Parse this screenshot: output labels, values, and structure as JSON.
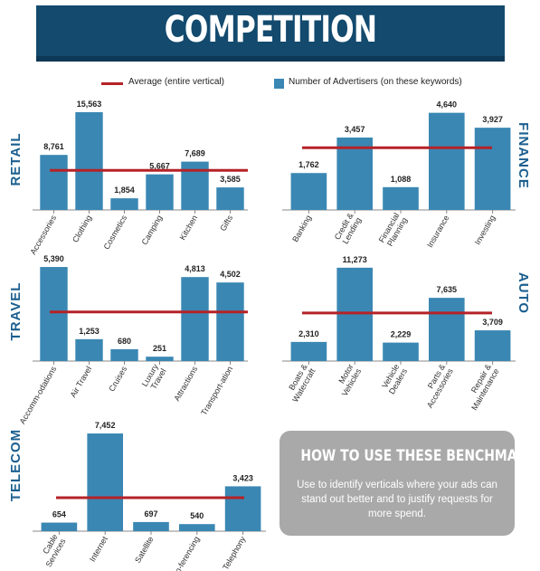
{
  "title": "COMPETITION",
  "legend": {
    "average_label": "Average (entire vertical)",
    "advertisers_label": "Number of Advertisers (on these keywords)"
  },
  "colors": {
    "bar": "#3a87b3",
    "average": "#b52227",
    "banner": "#134a6e",
    "sector_label": "#1b5f8f",
    "axis": "#888888"
  },
  "howto": {
    "title": "HOW TO USE THESE BENCHMARKS",
    "text": "Use to identify verticals where your ads can stand out better and to justify requests for more spend."
  },
  "chart_data": [
    {
      "type": "bar",
      "title": "RETAIL",
      "categories": [
        "Accessories",
        "Clothing",
        "Cosmetics",
        "Camping",
        "Kitchen",
        "Gifts"
      ],
      "values": [
        8761,
        15563,
        1854,
        5667,
        7689,
        3585
      ],
      "value_labels": [
        "8,761",
        "15,563",
        "1,854",
        "5,667",
        "7,689",
        "3,585"
      ],
      "average": 6300,
      "ylim": [
        0,
        17000
      ]
    },
    {
      "type": "bar",
      "title": "FINANCE",
      "categories": [
        "Banking",
        "Credit & Lending",
        "Financial Planning",
        "Insurance",
        "Investing"
      ],
      "values": [
        1762,
        3457,
        1088,
        4640,
        3927
      ],
      "value_labels": [
        "1,762",
        "3,457",
        "1,088",
        "4,640",
        "3,927"
      ],
      "average": 2970,
      "ylim": [
        0,
        5100
      ]
    },
    {
      "type": "bar",
      "title": "TRAVEL",
      "categories": [
        "Accomm-odations",
        "Air Travel",
        "Cruises",
        "Luxury Travel",
        "Attractions",
        "Transport-ation"
      ],
      "values": [
        5390,
        1253,
        680,
        251,
        4813,
        4502
      ],
      "value_labels": [
        "5,390",
        "1,253",
        "680",
        "251",
        "4,813",
        "4,502"
      ],
      "average": 2810,
      "ylim": [
        0,
        5600
      ]
    },
    {
      "type": "bar",
      "title": "AUTO",
      "categories": [
        "Boats & Watercraft",
        "Motor Vehicles",
        "Vehicle Dealers",
        "Parts & Accessories",
        "Repair & Maintenance"
      ],
      "values": [
        2310,
        11273,
        2229,
        7635,
        3709
      ],
      "value_labels": [
        "2,310",
        "11,273",
        "2,229",
        "7,635",
        "3,709"
      ],
      "average": 5800,
      "ylim": [
        0,
        11800
      ]
    },
    {
      "type": "bar",
      "title": "TELECOM",
      "categories": [
        "Cable Services",
        "Internet",
        "Satellite",
        "Telecon-ferencing",
        "Telephony"
      ],
      "values": [
        654,
        7452,
        697,
        540,
        3423
      ],
      "value_labels": [
        "654",
        "7,452",
        "697",
        "540",
        "3,423"
      ],
      "average": 2550,
      "ylim": [
        0,
        7800
      ]
    }
  ]
}
